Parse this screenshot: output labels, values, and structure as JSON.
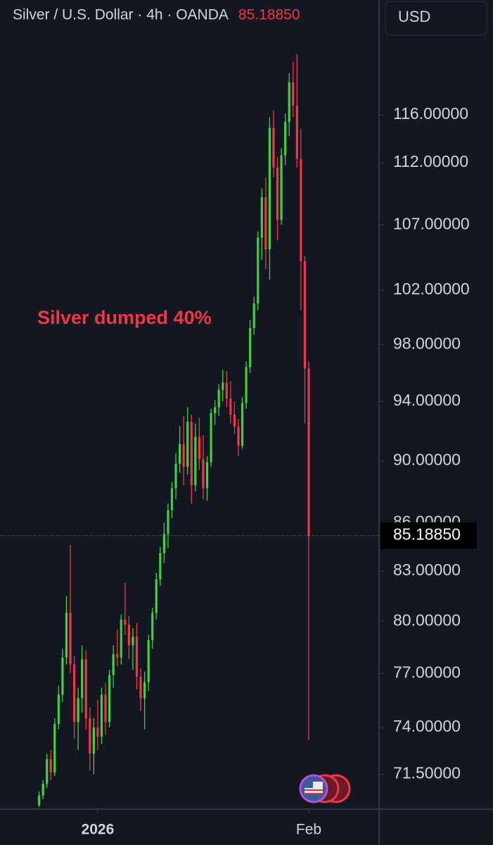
{
  "chart_data": {
    "type": "candlestick",
    "title": "Silver / U.S. Dollar · 4h · OANDA",
    "last_price": {
      "value": 85.1885,
      "label": "85.18850"
    },
    "currency": "USD",
    "annotation": "Silver dumped 40%",
    "log_scale": true,
    "up_color": "#3fd23f",
    "down_color": "#f23645",
    "ylim": [
      69.7,
      126.2
    ],
    "yticks": [
      {
        "value": 116,
        "label": "116.00000"
      },
      {
        "value": 112,
        "label": "112.00000"
      },
      {
        "value": 107,
        "label": "107.00000"
      },
      {
        "value": 102,
        "label": "102.00000"
      },
      {
        "value": 98,
        "label": "98.00000"
      },
      {
        "value": 94,
        "label": "94.00000"
      },
      {
        "value": 90,
        "label": "90.00000"
      },
      {
        "value": 86,
        "label": "86.00000"
      },
      {
        "value": 83,
        "label": "83.00000"
      },
      {
        "value": 80,
        "label": "80.00000"
      },
      {
        "value": 77,
        "label": "77.00000"
      },
      {
        "value": 74,
        "label": "74.00000"
      },
      {
        "value": 71.5,
        "label": "71.50000"
      }
    ],
    "xlim": [
      -10,
      87
    ],
    "xticks": [
      {
        "value": 15,
        "label": "2026"
      },
      {
        "value": 69,
        "label": "Feb"
      }
    ],
    "open": [
      69.9,
      70.4,
      71,
      72.3,
      71.6,
      74.2,
      75.8,
      77.9,
      80.5,
      77.5,
      74.3,
      75.6,
      77.8,
      74.5,
      72.6,
      74,
      73.5,
      75.8,
      74.3,
      76.9,
      78.1,
      77.9,
      80.1,
      79.8,
      78.6,
      79.1,
      76.8,
      75.6,
      76.5,
      78.9,
      80.5,
      82.5,
      84.1,
      85.3,
      86.8,
      88.2,
      89.8,
      91.1,
      89.6,
      92.6,
      88.4,
      91.6,
      90.1,
      88.2,
      89.9,
      93.2,
      93.6,
      94.8,
      95.3,
      94.2,
      93.1,
      92.3,
      91,
      93.9,
      96.4,
      99.2,
      101,
      106,
      109.2,
      105.1,
      114.9,
      111.6,
      107.4,
      112.6,
      115.4,
      118.8,
      116.8,
      112.3,
      104.2,
      96.3
    ],
    "high": [
      70.6,
      71.2,
      72.6,
      72.8,
      74.5,
      76.3,
      78.4,
      81.5,
      84.6,
      78,
      76.2,
      78.6,
      78.3,
      75.1,
      74.5,
      75.5,
      76.2,
      76.5,
      77.2,
      78.6,
      79.5,
      80.4,
      82.3,
      80.3,
      79.6,
      79.9,
      77.3,
      77.1,
      79.2,
      80.8,
      82.9,
      84.5,
      86,
      87.2,
      88.6,
      90.5,
      92.3,
      93,
      93.6,
      93.1,
      92.5,
      92.9,
      91.7,
      90.3,
      93.5,
      94.1,
      95.2,
      96.2,
      96.1,
      95.4,
      94,
      92.8,
      94.3,
      96.8,
      99.8,
      101.5,
      106.5,
      109.9,
      110.8,
      115.8,
      116.4,
      112.5,
      113.2,
      116.1,
      119.6,
      120.6,
      121.3,
      114.8,
      104.6,
      96.8
    ],
    "low": [
      69.8,
      70.2,
      70.8,
      71.2,
      71.4,
      73.9,
      75.4,
      77.5,
      77,
      73.4,
      72.8,
      74.8,
      73.9,
      71.7,
      71.5,
      72.8,
      73.1,
      73.6,
      74,
      76.2,
      77.4,
      77.5,
      79.2,
      77.8,
      77.2,
      76.1,
      74.9,
      73.9,
      76,
      78.4,
      80.1,
      82.1,
      83.5,
      84.4,
      86.3,
      87.5,
      89.2,
      88.4,
      89.1,
      87.2,
      88,
      89.4,
      87.5,
      87.4,
      89.6,
      92.4,
      93,
      94,
      93.6,
      92.5,
      91.8,
      90.3,
      90.8,
      93.5,
      96,
      98.7,
      100.5,
      104.3,
      103.6,
      102.8,
      110.8,
      105.8,
      107,
      111.8,
      114.2,
      115.8,
      111.6,
      100.5,
      92.5,
      73.3
    ],
    "close": [
      70.4,
      71,
      72.3,
      71.6,
      74.2,
      75.8,
      77.9,
      80.5,
      77.5,
      74.3,
      75.6,
      77.8,
      74.5,
      72.6,
      74,
      73.5,
      75.8,
      74.3,
      76.9,
      78.1,
      77.9,
      80.1,
      79.8,
      78.6,
      79.1,
      76.8,
      75.6,
      76.5,
      78.9,
      80.5,
      82.5,
      84.1,
      85.3,
      86.8,
      88.2,
      89.8,
      91.1,
      89.6,
      92.6,
      88.4,
      91.6,
      90.1,
      88.2,
      89.9,
      93.2,
      93.6,
      94.8,
      95.3,
      94.2,
      93.1,
      92.3,
      91,
      93.9,
      96.4,
      99.2,
      101,
      106,
      109.2,
      105.1,
      114.9,
      111.6,
      107.4,
      112.6,
      115.4,
      118.8,
      116.8,
      112.3,
      104.2,
      96.3,
      85.1885
    ]
  }
}
